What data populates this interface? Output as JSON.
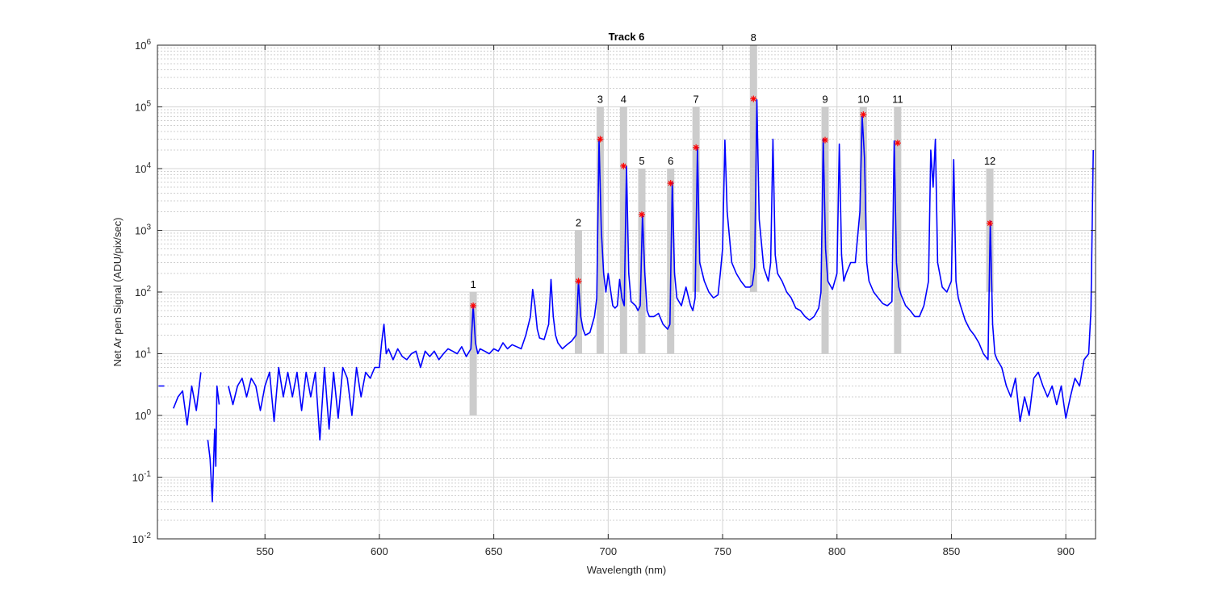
{
  "chart_data": {
    "type": "line",
    "title": "Track 6",
    "xlabel": "Wavelength (nm)",
    "ylabel": "Net Ar pen Signal (ADU/pix/sec)",
    "xlim": [
      503,
      913
    ],
    "ylim": [
      0.01,
      1000000
    ],
    "yscale": "log",
    "grid": true,
    "xticks": [
      {
        "value": 550,
        "label": "550"
      },
      {
        "value": 600,
        "label": "600"
      },
      {
        "value": 650,
        "label": "650"
      },
      {
        "value": 700,
        "label": "700"
      },
      {
        "value": 750,
        "label": "750"
      },
      {
        "value": 800,
        "label": "800"
      },
      {
        "value": 850,
        "label": "850"
      },
      {
        "value": 900,
        "label": "900"
      }
    ],
    "yticks": [
      {
        "value": 0.01,
        "mantissa": "10",
        "exp": "-2"
      },
      {
        "value": 0.1,
        "mantissa": "10",
        "exp": "-1"
      },
      {
        "value": 1,
        "mantissa": "10",
        "exp": "0"
      },
      {
        "value": 10,
        "mantissa": "10",
        "exp": "1"
      },
      {
        "value": 100,
        "mantissa": "10",
        "exp": "2"
      },
      {
        "value": 1000,
        "mantissa": "10",
        "exp": "3"
      },
      {
        "value": 10000,
        "mantissa": "10",
        "exp": "4"
      },
      {
        "value": 100000,
        "mantissa": "10",
        "exp": "5"
      },
      {
        "value": 1000000,
        "mantissa": "10",
        "exp": "6"
      }
    ],
    "line_color": "#0000ff",
    "marker_color": "#ff0000",
    "band_color": "#cccccc",
    "series": [
      {
        "x": [
          503.5,
          506,
          508,
          510,
          512,
          514,
          516,
          518,
          520,
          522,
          524,
          525,
          526,
          527,
          528,
          528.5,
          529,
          530,
          532,
          534,
          536,
          538,
          540,
          542,
          544,
          546,
          548,
          550,
          552,
          554,
          556,
          558,
          560,
          562,
          564,
          566,
          568,
          570,
          572,
          574,
          576,
          578,
          580,
          582,
          584,
          586,
          588,
          590,
          592,
          594,
          596,
          598,
          600,
          601,
          602,
          603,
          604,
          606,
          608,
          610,
          612,
          614,
          616,
          618,
          620,
          622,
          624,
          626,
          628,
          630,
          632,
          634,
          636,
          638,
          640,
          641,
          642,
          643,
          644,
          646,
          648,
          650,
          652,
          654,
          656,
          658,
          660,
          662,
          664,
          666,
          667,
          668,
          669,
          670,
          672,
          674,
          675,
          676,
          677,
          678,
          680,
          682,
          684,
          686,
          687,
          688,
          689,
          690,
          692,
          694,
          695,
          696,
          697,
          698,
          699,
          700,
          702,
          703,
          704,
          705,
          706,
          707,
          708,
          709,
          710,
          712,
          713,
          714,
          715,
          716,
          717,
          718,
          720,
          722,
          724,
          726,
          727,
          728,
          729,
          730,
          732,
          734,
          736,
          737,
          738,
          739,
          740,
          742,
          744,
          746,
          748,
          749,
          750,
          751,
          752,
          754,
          756,
          758,
          760,
          762,
          763,
          764,
          765,
          766,
          768,
          770,
          771,
          772,
          773,
          774,
          776,
          778,
          780,
          782,
          784,
          786,
          788,
          790,
          792,
          793,
          794,
          795,
          796,
          798,
          800,
          801,
          802,
          803,
          804,
          806,
          808,
          810,
          811,
          812,
          813,
          814,
          816,
          818,
          820,
          822,
          824,
          825,
          826,
          827,
          828,
          830,
          832,
          834,
          836,
          838,
          840,
          841,
          842,
          843,
          844,
          846,
          848,
          850,
          851,
          852,
          853,
          854,
          856,
          858,
          860,
          862,
          864,
          866,
          867,
          868,
          869,
          870,
          872,
          874,
          876,
          878,
          880,
          882,
          884,
          886,
          888,
          890,
          892,
          894,
          896,
          898,
          900,
          902,
          904,
          906,
          908,
          910,
          911,
          912
        ],
        "y": [
          3,
          3,
          null,
          1.3,
          2,
          2.5,
          0.7,
          3,
          1.2,
          5,
          null,
          0.4,
          0.2,
          0.04,
          0.6,
          0.15,
          3,
          1.5,
          null,
          3,
          1.5,
          3,
          4,
          2,
          4,
          3,
          1.2,
          3,
          5,
          0.8,
          6,
          2,
          5,
          2,
          5,
          1.2,
          5,
          2,
          5,
          0.4,
          6,
          0.6,
          5,
          0.9,
          6,
          4,
          1,
          6,
          2,
          5,
          4,
          6,
          6,
          15,
          30,
          10,
          12,
          8,
          12,
          9,
          8,
          10,
          11,
          6,
          11,
          9,
          11,
          8,
          10,
          12,
          11,
          10,
          13,
          9,
          12,
          60,
          15,
          10,
          12,
          11,
          10,
          12,
          11,
          15,
          12,
          14,
          13,
          12,
          20,
          40,
          110,
          60,
          25,
          18,
          17,
          30,
          160,
          40,
          20,
          15,
          12,
          14,
          16,
          20,
          150,
          40,
          25,
          20,
          22,
          40,
          80,
          30000,
          1000,
          200,
          100,
          200,
          60,
          55,
          60,
          160,
          80,
          60,
          11000,
          200,
          70,
          60,
          50,
          60,
          1800,
          200,
          50,
          40,
          40,
          45,
          30,
          25,
          30,
          6000,
          200,
          80,
          60,
          120,
          60,
          50,
          80,
          22000,
          300,
          150,
          100,
          80,
          90,
          200,
          500,
          29000,
          2000,
          300,
          200,
          150,
          120,
          120,
          130,
          250,
          130000,
          1500,
          250,
          150,
          300,
          30000,
          400,
          200,
          150,
          100,
          80,
          55,
          50,
          40,
          35,
          40,
          55,
          100,
          30000,
          500,
          150,
          110,
          200,
          25000,
          400,
          150,
          200,
          300,
          300,
          2000,
          70000,
          15000,
          300,
          150,
          100,
          80,
          65,
          60,
          70,
          28000,
          300,
          120,
          90,
          60,
          50,
          40,
          40,
          60,
          150,
          20000,
          5000,
          30000,
          300,
          120,
          100,
          150,
          14000,
          150,
          80,
          60,
          35,
          25,
          20,
          15,
          10,
          8,
          1400,
          30,
          10,
          8,
          6,
          3,
          2,
          4,
          0.8,
          2,
          1,
          4,
          5,
          3,
          2,
          3,
          1.5,
          3,
          0.9,
          2,
          4,
          3,
          8,
          10,
          50,
          20000
        ]
      }
    ],
    "bands": [
      {
        "label": "1",
        "x": 641,
        "ymin": 1,
        "ymax": 100,
        "peak": 60
      },
      {
        "label": "2",
        "x": 687,
        "ymin": 10,
        "ymax": 1000,
        "peak": 150
      },
      {
        "label": "3",
        "x": 696.5,
        "ymin": 10,
        "ymax": 100000,
        "peak": 30000
      },
      {
        "label": "4",
        "x": 706.7,
        "ymin": 10,
        "ymax": 100000,
        "peak": 11000
      },
      {
        "label": "5",
        "x": 714.7,
        "ymin": 10,
        "ymax": 10000,
        "peak": 1800
      },
      {
        "label": "6",
        "x": 727.3,
        "ymin": 10,
        "ymax": 10000,
        "peak": 5800
      },
      {
        "label": "7",
        "x": 738.4,
        "ymin": 100,
        "ymax": 100000,
        "peak": 22000
      },
      {
        "label": "8",
        "x": 763.5,
        "ymin": 100,
        "ymax": 1000000,
        "peak": 135000
      },
      {
        "label": "9",
        "x": 794.8,
        "ymin": 10,
        "ymax": 100000,
        "peak": 29000
      },
      {
        "label": "10",
        "x": 811.5,
        "ymin": 1000,
        "ymax": 100000,
        "peak": 75000
      },
      {
        "label": "11",
        "x": 826.5,
        "ymin": 10,
        "ymax": 100000,
        "peak": 26000
      },
      {
        "label": "12",
        "x": 866.8,
        "ymin": 100,
        "ymax": 10000,
        "peak": 1300
      }
    ]
  }
}
